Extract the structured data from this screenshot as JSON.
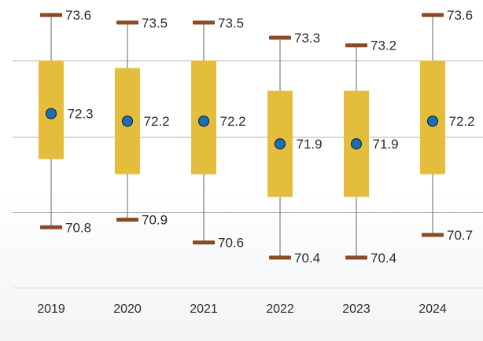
{
  "chart_data": {
    "type": "boxplot",
    "title": "",
    "xlabel": "",
    "ylabel": "",
    "ylim": [
      69.0,
      74.0
    ],
    "gridlines": [
      71.0,
      72.0,
      73.0
    ],
    "categories": [
      "2019",
      "2020",
      "2021",
      "2022",
      "2023",
      "2024"
    ],
    "series": [
      {
        "category": "2019",
        "max": 73.6,
        "q3": 73.0,
        "mean": 72.3,
        "q1": 71.7,
        "min": 70.8,
        "max_label": "73.6",
        "mean_label": "72.3",
        "min_label": "70.8"
      },
      {
        "category": "2020",
        "max": 73.5,
        "q3": 72.9,
        "mean": 72.2,
        "q1": 71.5,
        "min": 70.9,
        "max_label": "73.5",
        "mean_label": "72.2",
        "min_label": "70.9"
      },
      {
        "category": "2021",
        "max": 73.5,
        "q3": 73.0,
        "mean": 72.2,
        "q1": 71.5,
        "min": 70.6,
        "max_label": "73.5",
        "mean_label": "72.2",
        "min_label": "70.6"
      },
      {
        "category": "2022",
        "max": 73.3,
        "q3": 72.6,
        "mean": 71.9,
        "q1": 71.2,
        "min": 70.4,
        "max_label": "73.3",
        "mean_label": "71.9",
        "min_label": "70.4"
      },
      {
        "category": "2023",
        "max": 73.2,
        "q3": 72.6,
        "mean": 71.9,
        "q1": 71.2,
        "min": 70.4,
        "max_label": "73.2",
        "mean_label": "71.9",
        "min_label": "70.4"
      },
      {
        "category": "2024",
        "max": 73.6,
        "q3": 73.0,
        "mean": 72.2,
        "q1": 71.5,
        "min": 70.7,
        "max_label": "73.6",
        "mean_label": "72.2",
        "min_label": "70.7"
      }
    ],
    "colors": {
      "box": "#e4bd3d",
      "whisker": "#7f7f7f",
      "cap": "#8b4a23",
      "marker": "#1f6fb0",
      "marker_stroke": "#0d2a45",
      "grid": "#b3b3b3",
      "baseline": "#d9d9d9"
    }
  }
}
